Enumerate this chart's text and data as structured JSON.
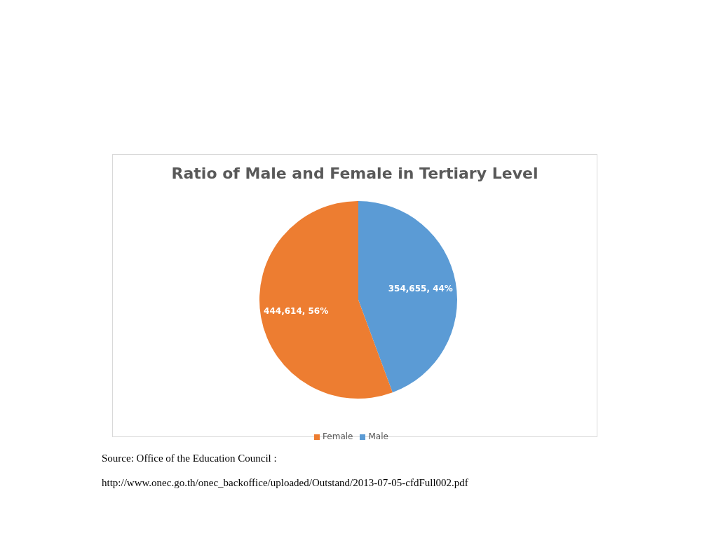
{
  "chart_data": {
    "type": "pie",
    "title": "Ratio of Male and Female in Tertiary Level",
    "categories": [
      "Male",
      "Female"
    ],
    "values": [
      354655,
      444614
    ],
    "colors": [
      "#5b9bd5",
      "#ed7d31"
    ],
    "value_labels": [
      "354,655, 44%",
      "444,614, 56%"
    ],
    "legend": "bottom",
    "annotations": [
      "Source: Office of the Education Council :",
      "http://www.onec.go.th/onec_backoffice/uploaded/Outstand/2013-07-05-cfdFull002.pdf"
    ]
  }
}
